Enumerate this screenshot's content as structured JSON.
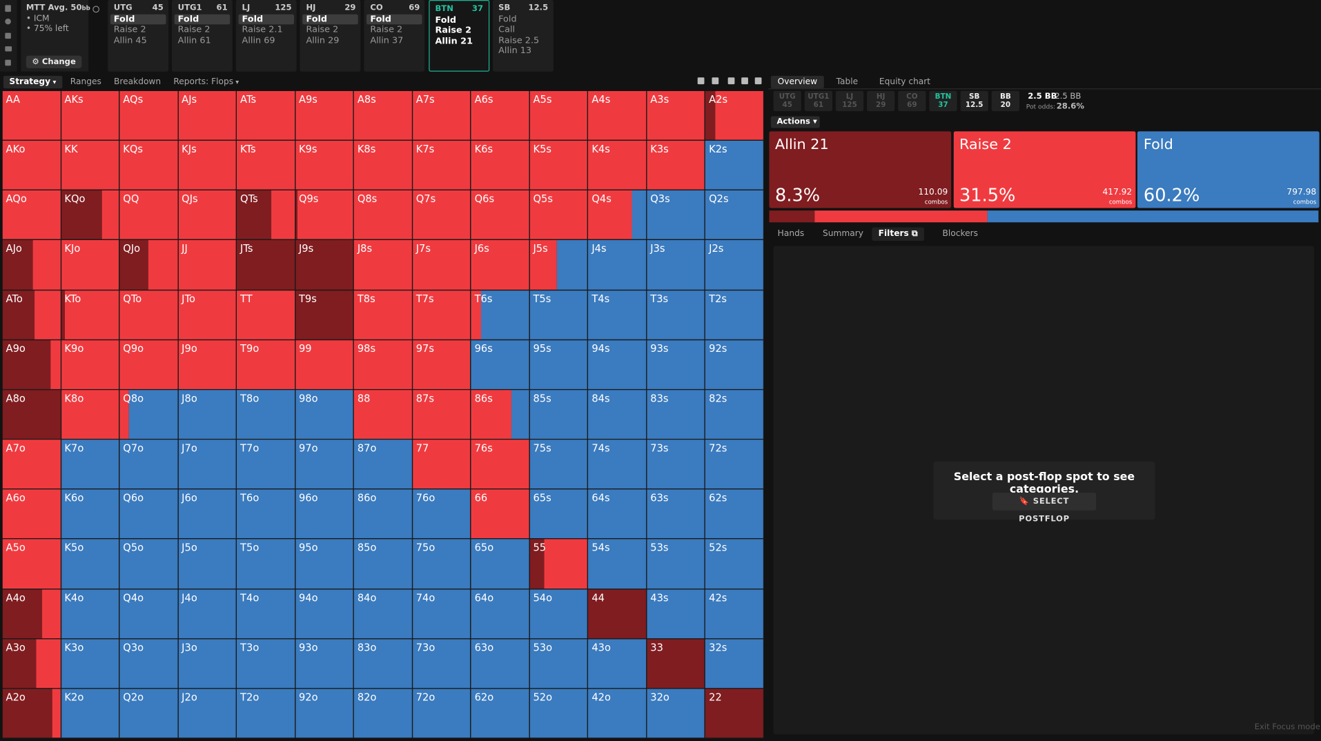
{
  "header": {
    "format": "MTT",
    "avg": "Avg. 50",
    "avg_unit": "bb",
    "notes": [
      "ICM",
      "75% left"
    ],
    "change": "Change"
  },
  "positions": [
    {
      "name": "UTG",
      "stack": 45,
      "actions": [
        "Fold",
        "Raise 2",
        "Allin 45"
      ],
      "selected": 0
    },
    {
      "name": "UTG1",
      "stack": 61,
      "actions": [
        "Fold",
        "Raise 2",
        "Allin 61"
      ],
      "selected": 0
    },
    {
      "name": "LJ",
      "stack": 125,
      "actions": [
        "Fold",
        "Raise 2.1",
        "Allin 69"
      ],
      "selected": 0
    },
    {
      "name": "HJ",
      "stack": 29,
      "actions": [
        "Fold",
        "Raise 2",
        "Allin 29"
      ],
      "selected": 0
    },
    {
      "name": "CO",
      "stack": 69,
      "actions": [
        "Fold",
        "Raise 2",
        "Allin 37"
      ],
      "selected": 0
    },
    {
      "name": "BTN",
      "stack": 37,
      "actions": [
        "Fold",
        "Raise 2",
        "Allin 21"
      ],
      "active": true
    },
    {
      "name": "SB",
      "stack": 12.5,
      "actions": [
        "Fold",
        "Call",
        "Raise 2.5",
        "Allin 13"
      ]
    }
  ],
  "tabs_left": [
    {
      "label": "Strategy",
      "dropdown": true
    },
    {
      "label": "Ranges"
    },
    {
      "label": "Breakdown"
    },
    {
      "label": "Reports: Flops",
      "dropdown": true
    }
  ],
  "colors": {
    "allin": "#801d20",
    "raise": "#ef3b40",
    "fold": "#3b7bbf"
  },
  "grid": {
    "rows": [
      [
        "AA",
        "AKs",
        "AQs",
        "AJs",
        "ATs",
        "A9s",
        "A8s",
        "A7s",
        "A6s",
        "A5s",
        "A4s",
        "A3s",
        "A2s"
      ],
      [
        "AKo",
        "KK",
        "KQs",
        "KJs",
        "KTs",
        "K9s",
        "K8s",
        "K7s",
        "K6s",
        "K5s",
        "K4s",
        "K3s",
        "K2s"
      ],
      [
        "AQo",
        "KQo",
        "QQ",
        "QJs",
        "QTs",
        "Q9s",
        "Q8s",
        "Q7s",
        "Q6s",
        "Q5s",
        "Q4s",
        "Q3s",
        "Q2s"
      ],
      [
        "AJo",
        "KJo",
        "QJo",
        "JJ",
        "JTs",
        "J9s",
        "J8s",
        "J7s",
        "J6s",
        "J5s",
        "J4s",
        "J3s",
        "J2s"
      ],
      [
        "ATo",
        "KTo",
        "QTo",
        "JTo",
        "TT",
        "T9s",
        "T8s",
        "T7s",
        "T6s",
        "T5s",
        "T4s",
        "T3s",
        "T2s"
      ],
      [
        "A9o",
        "K9o",
        "Q9o",
        "J9o",
        "T9o",
        "99",
        "98s",
        "97s",
        "96s",
        "95s",
        "94s",
        "93s",
        "92s"
      ],
      [
        "A8o",
        "K8o",
        "Q8o",
        "J8o",
        "T8o",
        "98o",
        "88",
        "87s",
        "86s",
        "85s",
        "84s",
        "83s",
        "82s"
      ],
      [
        "A7o",
        "K7o",
        "Q7o",
        "J7o",
        "T7o",
        "97o",
        "87o",
        "77",
        "76s",
        "75s",
        "74s",
        "73s",
        "72s"
      ],
      [
        "A6o",
        "K6o",
        "Q6o",
        "J6o",
        "T6o",
        "96o",
        "86o",
        "76o",
        "66",
        "65s",
        "64s",
        "63s",
        "62s"
      ],
      [
        "A5o",
        "K5o",
        "Q5o",
        "J5o",
        "T5o",
        "95o",
        "85o",
        "75o",
        "65o",
        "55",
        "54s",
        "53s",
        "52s"
      ],
      [
        "A4o",
        "K4o",
        "Q4o",
        "J4o",
        "T4o",
        "94o",
        "84o",
        "74o",
        "64o",
        "54o",
        "44",
        "43s",
        "42s"
      ],
      [
        "A3o",
        "K3o",
        "Q3o",
        "J3o",
        "T3o",
        "93o",
        "83o",
        "73o",
        "63o",
        "53o",
        "43o",
        "33",
        "32s"
      ],
      [
        "A2o",
        "K2o",
        "Q2o",
        "J2o",
        "T2o",
        "92o",
        "82o",
        "72o",
        "62o",
        "52o",
        "42o",
        "32o",
        "22"
      ]
    ],
    "mix": [
      [
        [
          0,
          100,
          0
        ],
        [
          0,
          100,
          0
        ],
        [
          0,
          100,
          0
        ],
        [
          0,
          100,
          0
        ],
        [
          0,
          100,
          0
        ],
        [
          0,
          100,
          0
        ],
        [
          0,
          100,
          0
        ],
        [
          0,
          100,
          0
        ],
        [
          0,
          100,
          0
        ],
        [
          0,
          100,
          0
        ],
        [
          0,
          100,
          0
        ],
        [
          0,
          100,
          0
        ],
        [
          17,
          83,
          0
        ]
      ],
      [
        [
          0,
          100,
          0
        ],
        [
          0,
          100,
          0
        ],
        [
          0,
          100,
          0
        ],
        [
          0,
          100,
          0
        ],
        [
          0,
          100,
          0
        ],
        [
          0,
          100,
          0
        ],
        [
          0,
          100,
          0
        ],
        [
          0,
          100,
          0
        ],
        [
          0,
          100,
          0
        ],
        [
          0,
          100,
          0
        ],
        [
          0,
          100,
          0
        ],
        [
          0,
          100,
          0
        ],
        [
          0,
          0,
          100
        ]
      ],
      [
        [
          0,
          100,
          0
        ],
        [
          70,
          30,
          0
        ],
        [
          0,
          100,
          0
        ],
        [
          0,
          100,
          0
        ],
        [
          60,
          40,
          0
        ],
        [
          4,
          96,
          0
        ],
        [
          0,
          100,
          0
        ],
        [
          0,
          100,
          0
        ],
        [
          0,
          100,
          0
        ],
        [
          0,
          100,
          0
        ],
        [
          0,
          75,
          25
        ],
        [
          0,
          0,
          100
        ],
        [
          0,
          0,
          100
        ]
      ],
      [
        [
          53,
          47,
          0
        ],
        [
          0,
          100,
          0
        ],
        [
          49,
          51,
          0
        ],
        [
          0,
          100,
          0
        ],
        [
          100,
          0,
          0
        ],
        [
          100,
          0,
          0
        ],
        [
          0,
          100,
          0
        ],
        [
          0,
          100,
          0
        ],
        [
          0,
          100,
          0
        ],
        [
          0,
          47,
          53
        ],
        [
          0,
          0,
          100
        ],
        [
          0,
          0,
          100
        ],
        [
          0,
          0,
          100
        ]
      ],
      [
        [
          55,
          45,
          0
        ],
        [
          7,
          93,
          0
        ],
        [
          0,
          100,
          0
        ],
        [
          0,
          100,
          0
        ],
        [
          0,
          100,
          0
        ],
        [
          100,
          0,
          0
        ],
        [
          0,
          100,
          0
        ],
        [
          0,
          100,
          0
        ],
        [
          0,
          17,
          83
        ],
        [
          0,
          0,
          100
        ],
        [
          0,
          0,
          100
        ],
        [
          0,
          0,
          100
        ],
        [
          0,
          0,
          100
        ]
      ],
      [
        [
          83,
          17,
          0
        ],
        [
          0,
          100,
          0
        ],
        [
          0,
          100,
          0
        ],
        [
          0,
          100,
          0
        ],
        [
          0,
          100,
          0
        ],
        [
          0,
          100,
          0
        ],
        [
          0,
          100,
          0
        ],
        [
          0,
          100,
          0
        ],
        [
          0,
          0,
          100
        ],
        [
          0,
          0,
          100
        ],
        [
          0,
          0,
          100
        ],
        [
          0,
          0,
          100
        ],
        [
          0,
          0,
          100
        ]
      ],
      [
        [
          100,
          0,
          0
        ],
        [
          0,
          100,
          0
        ],
        [
          0,
          16,
          84
        ],
        [
          0,
          0,
          100
        ],
        [
          0,
          0,
          100
        ],
        [
          0,
          0,
          100
        ],
        [
          0,
          100,
          0
        ],
        [
          0,
          100,
          0
        ],
        [
          0,
          69,
          31
        ],
        [
          0,
          0,
          100
        ],
        [
          0,
          0,
          100
        ],
        [
          0,
          0,
          100
        ],
        [
          0,
          0,
          100
        ]
      ],
      [
        [
          0,
          100,
          0
        ],
        [
          0,
          0,
          100
        ],
        [
          0,
          0,
          100
        ],
        [
          0,
          0,
          100
        ],
        [
          0,
          0,
          100
        ],
        [
          0,
          0,
          100
        ],
        [
          0,
          0,
          100
        ],
        [
          0,
          100,
          0
        ],
        [
          0,
          100,
          0
        ],
        [
          0,
          0,
          100
        ],
        [
          0,
          0,
          100
        ],
        [
          0,
          0,
          100
        ],
        [
          0,
          0,
          100
        ]
      ],
      [
        [
          0,
          100,
          0
        ],
        [
          0,
          0,
          100
        ],
        [
          0,
          0,
          100
        ],
        [
          0,
          0,
          100
        ],
        [
          0,
          0,
          100
        ],
        [
          0,
          0,
          100
        ],
        [
          0,
          0,
          100
        ],
        [
          0,
          0,
          100
        ],
        [
          0,
          100,
          0
        ],
        [
          0,
          0,
          100
        ],
        [
          0,
          0,
          100
        ],
        [
          0,
          0,
          100
        ],
        [
          0,
          0,
          100
        ]
      ],
      [
        [
          0,
          100,
          0
        ],
        [
          0,
          0,
          100
        ],
        [
          0,
          0,
          100
        ],
        [
          0,
          0,
          100
        ],
        [
          0,
          0,
          100
        ],
        [
          0,
          0,
          100
        ],
        [
          0,
          0,
          100
        ],
        [
          0,
          0,
          100
        ],
        [
          0,
          0,
          100
        ],
        [
          25,
          75,
          0
        ],
        [
          0,
          0,
          100
        ],
        [
          0,
          0,
          100
        ],
        [
          0,
          0,
          100
        ]
      ],
      [
        [
          68,
          32,
          0
        ],
        [
          0,
          0,
          100
        ],
        [
          0,
          0,
          100
        ],
        [
          0,
          0,
          100
        ],
        [
          0,
          0,
          100
        ],
        [
          0,
          0,
          100
        ],
        [
          0,
          0,
          100
        ],
        [
          0,
          0,
          100
        ],
        [
          0,
          0,
          100
        ],
        [
          0,
          0,
          100
        ],
        [
          100,
          0,
          0
        ],
        [
          0,
          0,
          100
        ],
        [
          0,
          0,
          100
        ]
      ],
      [
        [
          59,
          41,
          0
        ],
        [
          0,
          0,
          100
        ],
        [
          0,
          0,
          100
        ],
        [
          0,
          0,
          100
        ],
        [
          0,
          0,
          100
        ],
        [
          0,
          0,
          100
        ],
        [
          0,
          0,
          100
        ],
        [
          0,
          0,
          100
        ],
        [
          0,
          0,
          100
        ],
        [
          0,
          0,
          100
        ],
        [
          0,
          0,
          100
        ],
        [
          100,
          0,
          0
        ],
        [
          0,
          0,
          100
        ]
      ],
      [
        [
          86,
          14,
          0
        ],
        [
          0,
          0,
          100
        ],
        [
          0,
          0,
          100
        ],
        [
          0,
          0,
          100
        ],
        [
          0,
          0,
          100
        ],
        [
          0,
          0,
          100
        ],
        [
          0,
          0,
          100
        ],
        [
          0,
          0,
          100
        ],
        [
          0,
          0,
          100
        ],
        [
          0,
          0,
          100
        ],
        [
          0,
          0,
          100
        ],
        [
          0,
          0,
          100
        ],
        [
          100,
          0,
          0
        ]
      ]
    ]
  },
  "tabs_right": {
    "items": [
      "Overview",
      "Table",
      "Equity chart"
    ],
    "active": 0
  },
  "strip": [
    {
      "name": "UTG",
      "stack": 45,
      "dim": true
    },
    {
      "name": "UTG1",
      "stack": 61,
      "dim": true
    },
    {
      "name": "LJ",
      "stack": 125,
      "dim": true
    },
    {
      "name": "HJ",
      "stack": 29,
      "dim": true
    },
    {
      "name": "CO",
      "stack": 69,
      "dim": true
    },
    {
      "name": "BTN",
      "stack": 37,
      "active": true
    },
    {
      "name": "SB",
      "stack": 12.5
    },
    {
      "name": "BB",
      "stack": 20
    }
  ],
  "pot": {
    "a": "2.5 BB",
    "b": "2.5 BB",
    "odds_label": "Pot odds:",
    "odds": "28.6%"
  },
  "actions_menu": "Actions",
  "actions": [
    {
      "name": "Allin 21",
      "pct": 8.3,
      "pct_label": "8.3%",
      "combos": 110.09,
      "combos_label": "combos",
      "color": "#801d20"
    },
    {
      "name": "Raise 2",
      "pct": 31.5,
      "pct_label": "31.5%",
      "combos": 417.92,
      "combos_label": "combos",
      "color": "#ef3b40"
    },
    {
      "name": "Fold",
      "pct": 60.2,
      "pct_label": "60.2%",
      "combos": 797.98,
      "combos_label": "combos",
      "color": "#3b7bbf"
    }
  ],
  "subtabs": {
    "items": [
      "Hands",
      "Summary",
      "Filters",
      "Blockers"
    ],
    "active": 2
  },
  "empty": {
    "message": "Select a post-flop spot to see categories.",
    "button": "SELECT POSTFLOP"
  },
  "footer": "Exit Focus mode"
}
